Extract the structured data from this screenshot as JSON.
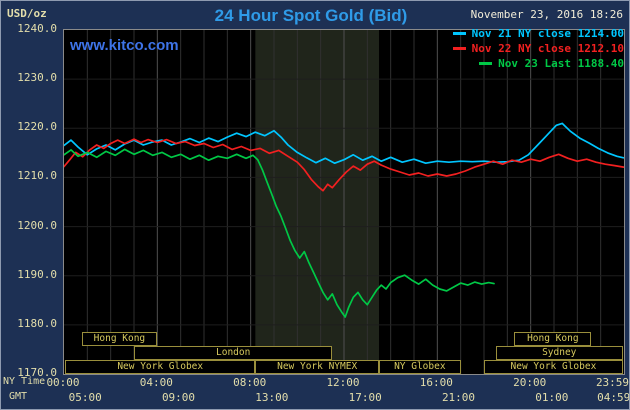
{
  "header": {
    "usd_oz": "USD/oz",
    "title": "24 Hour Spot Gold (Bid)",
    "datetime": "November 23, 2016 18:26",
    "kitco_url": "www.kitco.com",
    "legend": [
      {
        "label": "Nov 21 NY close 1214.00",
        "color": "#00c6ff"
      },
      {
        "label": "Nov 22 NY close 1212.10",
        "color": "#f22020"
      },
      {
        "label": "Nov 23 Last 1188.40",
        "color": "#00c846"
      }
    ]
  },
  "axes": {
    "y_ticks": [
      "1240.0",
      "1230.0",
      "1220.0",
      "1210.0",
      "1200.0",
      "1190.0",
      "1180.0",
      "1170.0"
    ],
    "x_rows": [
      {
        "label": "NY Time",
        "ticks": [
          {
            "text": "00:00",
            "hour": 0
          },
          {
            "text": "04:00",
            "hour": 4
          },
          {
            "text": "08:00",
            "hour": 8
          },
          {
            "text": "12:00",
            "hour": 12
          },
          {
            "text": "16:00",
            "hour": 16
          },
          {
            "text": "20:00",
            "hour": 20
          },
          {
            "text": "23:59",
            "hour": 23.55
          }
        ]
      },
      {
        "label": "GMT",
        "ticks": [
          {
            "text": "05:00",
            "hour": 0.95
          },
          {
            "text": "09:00",
            "hour": 4.95
          },
          {
            "text": "13:00",
            "hour": 8.95
          },
          {
            "text": "17:00",
            "hour": 12.95
          },
          {
            "text": "21:00",
            "hour": 16.95
          },
          {
            "text": "01:00",
            "hour": 20.95
          },
          {
            "text": "04:59",
            "hour": 23.6
          }
        ]
      }
    ]
  },
  "sessions": [
    {
      "label": "Hong Kong",
      "row": 0,
      "start": 0.75,
      "end": 4.0
    },
    {
      "label": "Hong Kong",
      "row": 0,
      "start": 19.3,
      "end": 22.6
    },
    {
      "label": "London",
      "row": 1,
      "start": 3.0,
      "end": 11.5
    },
    {
      "label": "Sydney",
      "row": 1,
      "start": 18.5,
      "end": 23.95
    },
    {
      "label": "New York Globex",
      "row": 2,
      "start": 0.05,
      "end": 8.2
    },
    {
      "label": "New York NYMEX",
      "row": 2,
      "start": 8.2,
      "end": 13.5
    },
    {
      "label": "NY Globex",
      "row": 2,
      "start": 13.5,
      "end": 17.0
    },
    {
      "label": "New York Globex",
      "row": 2,
      "start": 18.0,
      "end": 23.95
    }
  ],
  "chart_data": {
    "type": "line",
    "title": "24 Hour Spot Gold (Bid)",
    "xlabel": "NY Time / GMT",
    "ylabel": "USD/oz",
    "x_range_hours": [
      0,
      24
    ],
    "ylim": [
      1170,
      1240
    ],
    "y_tick_step": 10,
    "grid": true,
    "legend_position": "top-right",
    "band_color": "#20251b",
    "nymex_band_hours": [
      8.2,
      13.5
    ],
    "series": [
      {
        "id": "nov21",
        "name": "Nov 21 NY close",
        "close": 1214.0,
        "color": "#00c6ff",
        "points": [
          [
            0,
            1216.5
          ],
          [
            0.3,
            1217.6
          ],
          [
            0.6,
            1216.2
          ],
          [
            1,
            1214.6
          ],
          [
            1.4,
            1215.8
          ],
          [
            1.8,
            1216.6
          ],
          [
            2.2,
            1215.6
          ],
          [
            2.6,
            1216.8
          ],
          [
            3,
            1217.6
          ],
          [
            3.4,
            1216.6
          ],
          [
            3.8,
            1217.2
          ],
          [
            4.2,
            1217.6
          ],
          [
            4.6,
            1216.6
          ],
          [
            5,
            1217.2
          ],
          [
            5.4,
            1217.9
          ],
          [
            5.8,
            1217.1
          ],
          [
            6.2,
            1218.0
          ],
          [
            6.6,
            1217.3
          ],
          [
            7,
            1218.2
          ],
          [
            7.4,
            1219.0
          ],
          [
            7.8,
            1218.3
          ],
          [
            8.2,
            1219.2
          ],
          [
            8.6,
            1218.5
          ],
          [
            9,
            1219.5
          ],
          [
            9.3,
            1218.2
          ],
          [
            9.6,
            1216.6
          ],
          [
            10,
            1215.1
          ],
          [
            10.4,
            1214.0
          ],
          [
            10.8,
            1213.0
          ],
          [
            11.2,
            1213.9
          ],
          [
            11.6,
            1212.9
          ],
          [
            12,
            1213.6
          ],
          [
            12.4,
            1214.6
          ],
          [
            12.8,
            1213.5
          ],
          [
            13.2,
            1214.3
          ],
          [
            13.6,
            1213.3
          ],
          [
            14,
            1214.1
          ],
          [
            14.5,
            1213.1
          ],
          [
            15,
            1213.7
          ],
          [
            15.5,
            1212.9
          ],
          [
            16,
            1213.3
          ],
          [
            16.5,
            1213.1
          ],
          [
            17,
            1213.3
          ],
          [
            17.5,
            1213.2
          ],
          [
            18,
            1213.3
          ],
          [
            18.5,
            1213.1
          ],
          [
            19,
            1213.2
          ],
          [
            19.5,
            1213.5
          ],
          [
            19.9,
            1214.6
          ],
          [
            20.3,
            1216.6
          ],
          [
            20.7,
            1218.6
          ],
          [
            21.1,
            1220.6
          ],
          [
            21.35,
            1221.0
          ],
          [
            21.7,
            1219.4
          ],
          [
            22.1,
            1218.0
          ],
          [
            22.5,
            1217.0
          ],
          [
            22.9,
            1215.9
          ],
          [
            23.3,
            1215.0
          ],
          [
            23.7,
            1214.3
          ],
          [
            23.98,
            1214.0
          ]
        ]
      },
      {
        "id": "nov22",
        "name": "Nov 22 NY close",
        "close": 1212.1,
        "color": "#f22020",
        "points": [
          [
            0,
            1212.2
          ],
          [
            0.25,
            1213.6
          ],
          [
            0.5,
            1215.1
          ],
          [
            0.8,
            1214.2
          ],
          [
            1.1,
            1215.6
          ],
          [
            1.4,
            1216.6
          ],
          [
            1.7,
            1215.9
          ],
          [
            2,
            1216.9
          ],
          [
            2.3,
            1217.6
          ],
          [
            2.6,
            1216.9
          ],
          [
            3,
            1217.8
          ],
          [
            3.3,
            1217.1
          ],
          [
            3.6,
            1217.7
          ],
          [
            4,
            1217.1
          ],
          [
            4.4,
            1217.7
          ],
          [
            4.8,
            1216.9
          ],
          [
            5.2,
            1217.3
          ],
          [
            5.6,
            1216.5
          ],
          [
            6,
            1216.9
          ],
          [
            6.4,
            1216.1
          ],
          [
            6.8,
            1216.7
          ],
          [
            7.2,
            1215.7
          ],
          [
            7.6,
            1216.3
          ],
          [
            8,
            1215.5
          ],
          [
            8.4,
            1215.9
          ],
          [
            8.8,
            1214.9
          ],
          [
            9.2,
            1215.5
          ],
          [
            9.6,
            1214.3
          ],
          [
            10,
            1213.1
          ],
          [
            10.3,
            1211.6
          ],
          [
            10.6,
            1209.6
          ],
          [
            10.9,
            1208.1
          ],
          [
            11.1,
            1207.3
          ],
          [
            11.3,
            1208.6
          ],
          [
            11.5,
            1207.9
          ],
          [
            11.8,
            1209.6
          ],
          [
            12.1,
            1211.1
          ],
          [
            12.4,
            1212.3
          ],
          [
            12.7,
            1211.5
          ],
          [
            13,
            1212.7
          ],
          [
            13.3,
            1213.3
          ],
          [
            13.6,
            1212.5
          ],
          [
            14,
            1211.7
          ],
          [
            14.4,
            1211.1
          ],
          [
            14.8,
            1210.5
          ],
          [
            15.2,
            1210.9
          ],
          [
            15.6,
            1210.3
          ],
          [
            16,
            1210.7
          ],
          [
            16.4,
            1210.3
          ],
          [
            16.8,
            1210.7
          ],
          [
            17.2,
            1211.3
          ],
          [
            17.6,
            1212.1
          ],
          [
            18,
            1212.7
          ],
          [
            18.4,
            1213.3
          ],
          [
            18.8,
            1212.7
          ],
          [
            19.2,
            1213.5
          ],
          [
            19.6,
            1213.1
          ],
          [
            20,
            1213.7
          ],
          [
            20.4,
            1213.3
          ],
          [
            20.8,
            1214.1
          ],
          [
            21.2,
            1214.7
          ],
          [
            21.6,
            1213.9
          ],
          [
            22,
            1213.3
          ],
          [
            22.4,
            1213.7
          ],
          [
            22.8,
            1213.1
          ],
          [
            23.2,
            1212.7
          ],
          [
            23.6,
            1212.4
          ],
          [
            23.98,
            1212.1
          ]
        ]
      },
      {
        "id": "nov23",
        "name": "Nov 23 Last",
        "close": 1188.4,
        "color": "#00c846",
        "points": [
          [
            0,
            1214.6
          ],
          [
            0.3,
            1215.6
          ],
          [
            0.6,
            1214.3
          ],
          [
            1,
            1215.1
          ],
          [
            1.4,
            1214.1
          ],
          [
            1.8,
            1215.3
          ],
          [
            2.2,
            1214.5
          ],
          [
            2.6,
            1215.7
          ],
          [
            3,
            1214.7
          ],
          [
            3.4,
            1215.5
          ],
          [
            3.8,
            1214.5
          ],
          [
            4.2,
            1215.1
          ],
          [
            4.6,
            1214.1
          ],
          [
            5,
            1214.7
          ],
          [
            5.4,
            1213.7
          ],
          [
            5.8,
            1214.5
          ],
          [
            6.2,
            1213.5
          ],
          [
            6.6,
            1214.3
          ],
          [
            7,
            1213.9
          ],
          [
            7.4,
            1214.7
          ],
          [
            7.8,
            1213.9
          ],
          [
            8.1,
            1214.5
          ],
          [
            8.3,
            1213.6
          ],
          [
            8.5,
            1211.6
          ],
          [
            8.7,
            1209.1
          ],
          [
            8.9,
            1206.6
          ],
          [
            9.1,
            1204.1
          ],
          [
            9.3,
            1202.1
          ],
          [
            9.5,
            1199.6
          ],
          [
            9.7,
            1197.1
          ],
          [
            9.9,
            1195.1
          ],
          [
            10.1,
            1193.6
          ],
          [
            10.3,
            1194.9
          ],
          [
            10.5,
            1192.6
          ],
          [
            10.7,
            1190.6
          ],
          [
            10.9,
            1188.6
          ],
          [
            11.1,
            1186.6
          ],
          [
            11.3,
            1185.1
          ],
          [
            11.5,
            1186.3
          ],
          [
            11.7,
            1184.1
          ],
          [
            11.9,
            1182.6
          ],
          [
            12.05,
            1181.6
          ],
          [
            12.2,
            1183.6
          ],
          [
            12.4,
            1185.6
          ],
          [
            12.6,
            1186.6
          ],
          [
            12.8,
            1185.1
          ],
          [
            13,
            1184.1
          ],
          [
            13.2,
            1185.6
          ],
          [
            13.4,
            1187.1
          ],
          [
            13.6,
            1188.1
          ],
          [
            13.8,
            1187.3
          ],
          [
            14,
            1188.6
          ],
          [
            14.3,
            1189.6
          ],
          [
            14.6,
            1190.1
          ],
          [
            14.9,
            1189.1
          ],
          [
            15.2,
            1188.3
          ],
          [
            15.5,
            1189.3
          ],
          [
            15.8,
            1188.1
          ],
          [
            16.1,
            1187.3
          ],
          [
            16.4,
            1186.9
          ],
          [
            16.7,
            1187.7
          ],
          [
            17,
            1188.5
          ],
          [
            17.3,
            1188.1
          ],
          [
            17.6,
            1188.7
          ],
          [
            17.9,
            1188.3
          ],
          [
            18.2,
            1188.6
          ],
          [
            18.43,
            1188.4
          ]
        ]
      }
    ]
  }
}
